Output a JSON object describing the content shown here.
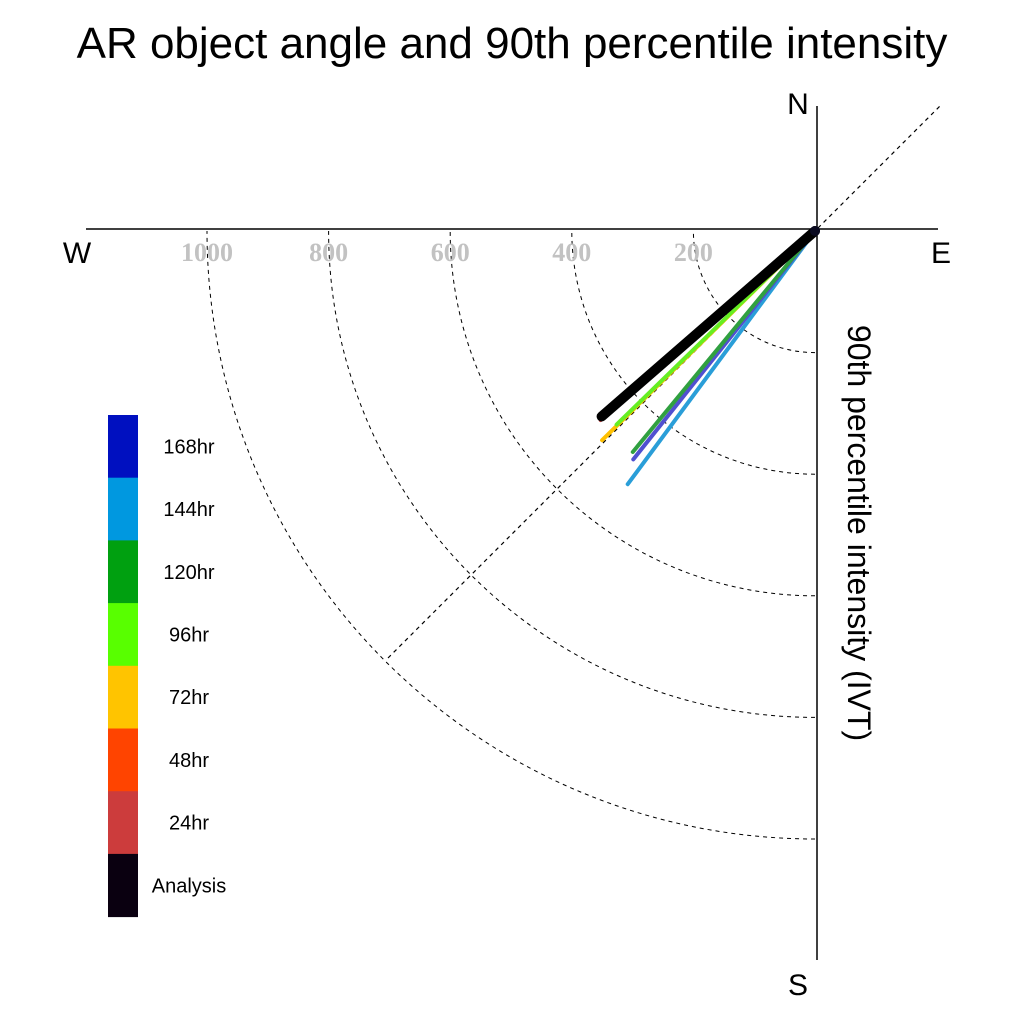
{
  "chart_data": {
    "type": "polar-vector",
    "title": "AR object angle and 90th percentile intensity",
    "ylabel": "90th percentile intensity (IVT)",
    "compass": {
      "north": "N",
      "south": "S",
      "east": "E",
      "west": "W"
    },
    "radial_ticks": [
      "200",
      "400",
      "600",
      "800",
      "1000"
    ],
    "radial_tick_values": [
      200,
      400,
      600,
      800,
      1000
    ],
    "rings": [
      200,
      400,
      600,
      800,
      1000
    ],
    "rmax": 1200,
    "legend": [
      {
        "label": "168hr",
        "color": "#0010c0"
      },
      {
        "label": "144hr",
        "color": "#0098e0"
      },
      {
        "label": "120hr",
        "color": "#00a010"
      },
      {
        "label": "96hr",
        "color": "#58ff00"
      },
      {
        "label": "72hr",
        "color": "#ffc400"
      },
      {
        "label": "48hr",
        "color": "#ff4400"
      },
      {
        "label": "24hr",
        "color": "#cc3c3c"
      },
      {
        "label": "Analysis",
        "color": "#0a0010"
      }
    ],
    "series": [
      {
        "name": "144hr",
        "color": "#2a9ed8",
        "width": 4,
        "vectors": [
          {
            "angle_deg": 216.5,
            "intensity": 518
          }
        ]
      },
      {
        "name": "168hr",
        "color": "#5050d0",
        "width": 4,
        "vectors": [
          {
            "angle_deg": 218.5,
            "intensity": 480
          }
        ]
      },
      {
        "name": "120hr",
        "color": "#30a040",
        "width": 4,
        "vectors": [
          {
            "angle_deg": 219.5,
            "intensity": 471
          }
        ]
      },
      {
        "name": "72hr",
        "color": "#ffc000",
        "width": 4,
        "vectors": [
          {
            "angle_deg": 225.5,
            "intensity": 491
          }
        ]
      },
      {
        "name": "96hr",
        "color": "#66ee22",
        "width": 4,
        "vectors": [
          {
            "angle_deg": 225.7,
            "intensity": 456
          }
        ]
      },
      {
        "name": "48hr",
        "color": "#ee4a20",
        "width": 4,
        "vectors": [
          {
            "angle_deg": 229.4,
            "intensity": 450
          }
        ]
      },
      {
        "name": "24hr",
        "color": "#d04040",
        "width": 4,
        "vectors": [
          {
            "angle_deg": 228.6,
            "intensity": 470
          }
        ]
      },
      {
        "name": "Analysis",
        "color": "#000000",
        "width": 10,
        "vectors": [
          {
            "angle_deg": 229.0,
            "intensity": 465
          }
        ]
      }
    ]
  }
}
